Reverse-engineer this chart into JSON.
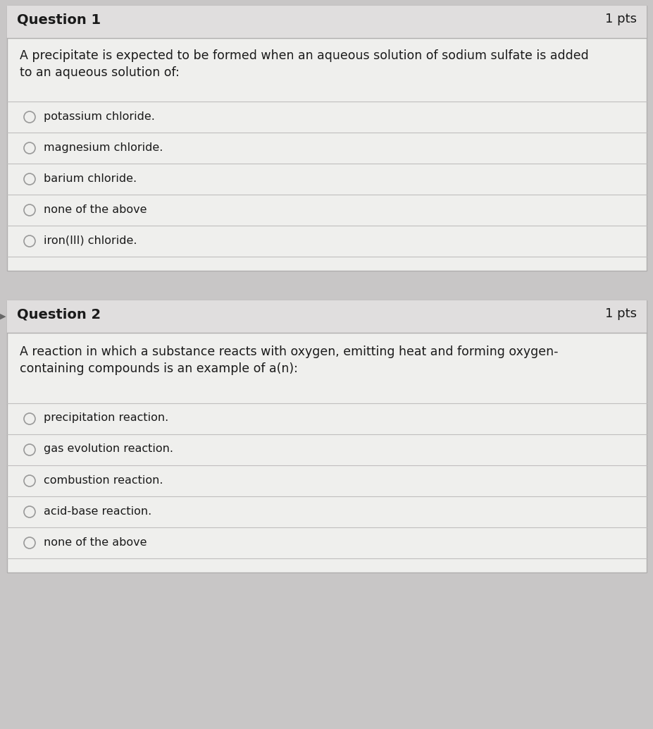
{
  "bg_color": "#c8c6c6",
  "card_color": "#efefed",
  "header_color": "#e0dede",
  "divider_color": "#c0bebe",
  "border_color": "#b0aeae",
  "text_color": "#1a1a1a",
  "header_text_color": "#1a1a1a",
  "question1_header": "Question 1",
  "question1_pts": "1 pts",
  "question1_body_line1": "A precipitate is expected to be formed when an aqueous solution of sodium sulfate is added",
  "question1_body_line2": "to an aqueous solution of:",
  "question1_options": [
    "potassium chloride.",
    "magnesium chloride.",
    "barium chloride.",
    "none of the above",
    "iron(III) chloride."
  ],
  "question2_header": "Question 2",
  "question2_pts": "1 pts",
  "question2_body_line1": "A reaction in which a substance reacts with oxygen, emitting heat and forming oxygen-",
  "question2_body_line2": "containing compounds is an example of a(n):",
  "question2_options": [
    "precipitation reaction.",
    "gas evolution reaction.",
    "combustion reaction.",
    "acid-base reaction.",
    "none of the above"
  ],
  "figsize": [
    9.28,
    10.34
  ],
  "dpi": 100
}
